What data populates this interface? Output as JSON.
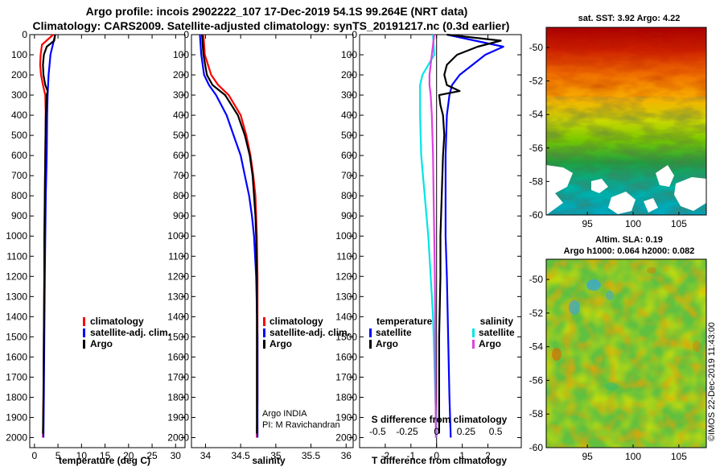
{
  "header": {
    "title_line1": "Argo profile: incois 2902222_107 17-Dec-2019 54.1S 99.264E (NRT data)",
    "title_line2": "Climatology: CARS2009. Satellite-adjusted climatology: synTS_20191217.nc (0.3d earlier)"
  },
  "colors": {
    "climatology": "#ff0000",
    "satellite": "#0000ff",
    "argo": "#000000",
    "satellite_s": "#00e5e5",
    "argo_s": "#e040e0"
  },
  "depth_ticks": [
    "0",
    "100",
    "200",
    "300",
    "400",
    "500",
    "600",
    "700",
    "800",
    "900",
    "1000",
    "1100",
    "1200",
    "1300",
    "1400",
    "1500",
    "1600",
    "1700",
    "1800",
    "1900",
    "2000"
  ],
  "chart_data": [
    {
      "type": "line",
      "id": "temperature",
      "xlabel": "temperature (deg C)",
      "ylabel": "",
      "xlim": [
        -1,
        32
      ],
      "ylim": [
        2050,
        0
      ],
      "xticks": [
        "0",
        "5",
        "10",
        "15",
        "20",
        "25",
        "30"
      ],
      "legend": [
        "climatology",
        "satellite-adj. clim.",
        "Argo"
      ],
      "series": [
        {
          "name": "climatology",
          "depth": [
            0,
            50,
            100,
            150,
            200,
            250,
            300,
            400,
            600,
            800,
            1000,
            1200,
            1500,
            1800,
            2000
          ],
          "values": [
            4.0,
            1.6,
            1.3,
            1.2,
            1.4,
            1.8,
            2.3,
            2.4,
            2.3,
            2.2,
            2.2,
            2.1,
            2.0,
            1.9,
            1.8
          ]
        },
        {
          "name": "satellite-adj. clim.",
          "depth": [
            0,
            50,
            100,
            150,
            200,
            250,
            300,
            400,
            600,
            800,
            1000,
            1200,
            1500,
            1800,
            2000
          ],
          "values": [
            4.4,
            3.9,
            3.4,
            3.2,
            3.0,
            2.9,
            2.8,
            2.7,
            2.6,
            2.4,
            2.3,
            2.2,
            2.1,
            2.0,
            1.9
          ]
        },
        {
          "name": "Argo",
          "depth": [
            0,
            30,
            60,
            100,
            150,
            200,
            250,
            280,
            300,
            350,
            400,
            600,
            800,
            1000,
            1200,
            1500,
            1800,
            1980
          ],
          "values": [
            4.4,
            4.2,
            2.6,
            2.0,
            1.8,
            1.9,
            2.3,
            2.8,
            2.6,
            2.5,
            2.4,
            2.3,
            2.2,
            2.1,
            2.1,
            2.0,
            1.9,
            1.8
          ]
        }
      ]
    },
    {
      "type": "line",
      "id": "salinity",
      "xlabel": "salinity",
      "ylabel": "",
      "xlim": [
        33.8,
        36.1
      ],
      "ylim": [
        2050,
        0
      ],
      "xticks": [
        "34",
        "34.5",
        "35",
        "35.5",
        "36"
      ],
      "legend": [
        "climatology",
        "satellite-adj. clim.",
        "Argo"
      ],
      "series": [
        {
          "name": "climatology",
          "depth": [
            0,
            100,
            200,
            250,
            300,
            400,
            500,
            600,
            700,
            800,
            900,
            1000,
            1200,
            1500,
            1800,
            2000
          ],
          "values": [
            33.97,
            33.99,
            34.08,
            34.18,
            34.33,
            34.5,
            34.58,
            34.64,
            34.68,
            34.71,
            34.72,
            34.73,
            34.74,
            34.74,
            34.74,
            34.73
          ]
        },
        {
          "name": "satellite-adj. clim.",
          "depth": [
            0,
            100,
            200,
            250,
            300,
            400,
            500,
            600,
            700,
            800,
            900,
            1000,
            1200,
            1500,
            1800,
            2000
          ],
          "values": [
            33.92,
            33.94,
            33.98,
            34.05,
            34.15,
            34.3,
            34.4,
            34.5,
            34.56,
            34.62,
            34.66,
            34.69,
            34.72,
            34.74,
            34.74,
            34.74
          ]
        },
        {
          "name": "Argo",
          "depth": [
            0,
            100,
            200,
            250,
            300,
            400,
            500,
            600,
            700,
            800,
            900,
            1000,
            1200,
            1500,
            1800,
            1980
          ],
          "values": [
            33.95,
            33.97,
            34.02,
            34.1,
            34.28,
            34.46,
            34.56,
            34.63,
            34.67,
            34.69,
            34.71,
            34.72,
            34.73,
            34.73,
            34.73,
            34.73
          ]
        }
      ]
    },
    {
      "type": "line",
      "id": "difference",
      "xlabel": "T difference from climatology",
      "xlabel_top": "S difference from climatology",
      "xlim": [
        -3,
        3.3
      ],
      "ylim": [
        2050,
        0
      ],
      "xticks": [
        "-2",
        "-1",
        "0",
        "1",
        "2"
      ],
      "xticks_s": [
        "-0.5",
        "-0.25",
        "0",
        "0.25",
        "0.5"
      ],
      "legend_t_title": "temperature",
      "legend_s_title": "salinity",
      "legend_t": [
        "satellite",
        "Argo"
      ],
      "legend_s": [
        "satellite",
        "Argo"
      ],
      "series": [
        {
          "name": "T satellite",
          "depth": [
            0,
            30,
            60,
            100,
            150,
            200,
            250,
            300,
            400,
            600,
            800,
            1000,
            1200,
            1500,
            1800,
            2000
          ],
          "values": [
            0.4,
            1.5,
            2.6,
            1.9,
            1.4,
            0.9,
            0.6,
            0.5,
            0.4,
            0.35,
            0.35,
            0.35,
            0.4,
            0.45,
            0.5,
            0.55
          ]
        },
        {
          "name": "T Argo",
          "depth": [
            0,
            30,
            60,
            100,
            150,
            200,
            250,
            280,
            300,
            350,
            400,
            500,
            600,
            800,
            1000,
            1200,
            1500,
            1800,
            1980
          ],
          "values": [
            0.4,
            2.5,
            1.6,
            0.8,
            0.4,
            0.3,
            0.4,
            0.9,
            0.1,
            0.15,
            0.25,
            0.3,
            0.25,
            0.2,
            0.15,
            0.15,
            0.1,
            0.1,
            0.1
          ]
        },
        {
          "name": "S satellite",
          "depth": [
            0,
            100,
            200,
            250,
            300,
            400,
            600,
            800,
            1000,
            1200,
            1400,
            1600,
            1800,
            2000
          ],
          "values": [
            -0.03,
            -0.02,
            -0.12,
            -0.14,
            -0.14,
            -0.14,
            -0.13,
            -0.1,
            -0.07,
            -0.05,
            -0.03,
            -0.02,
            -0.01,
            0.0
          ]
        },
        {
          "name": "S Argo",
          "depth": [
            0,
            100,
            200,
            250,
            300,
            400,
            600,
            800,
            1000,
            1200,
            1400,
            1600,
            1800,
            2000
          ],
          "values": [
            -0.02,
            -0.04,
            -0.06,
            -0.06,
            -0.05,
            -0.04,
            -0.03,
            -0.025,
            -0.02,
            -0.015,
            -0.012,
            -0.01,
            -0.008,
            -0.006
          ]
        }
      ]
    },
    {
      "type": "heatmap",
      "id": "sst-map",
      "title": "sat. SST: 3.92 Argo: 4.22",
      "xticks": [
        "95",
        "100",
        "105"
      ],
      "yticks": [
        "-50",
        "-52",
        "-54",
        "-56",
        "-58",
        "-60"
      ],
      "xlim": [
        90.5,
        108
      ],
      "ylim": [
        -60,
        -48.8
      ],
      "argo_position": [
        99.264,
        -54.1
      ]
    },
    {
      "type": "heatmap",
      "id": "sla-map",
      "title_line1": "Altim. SLA: 0.19",
      "title_line2": "Argo h1000: 0.064 h2000: 0.082",
      "xticks": [
        "95",
        "100",
        "105"
      ],
      "yticks": [
        "-50",
        "-52",
        "-54",
        "-56",
        "-58",
        "-60"
      ],
      "xlim": [
        90.5,
        108
      ],
      "ylim": [
        -60,
        -48.8
      ]
    }
  ],
  "credits": {
    "argo_line1": "Argo INDIA",
    "argo_line2": "PI: M Ravichandran",
    "imos_stamp": "©IMOS 22-Dec-2019 11:43:00"
  }
}
